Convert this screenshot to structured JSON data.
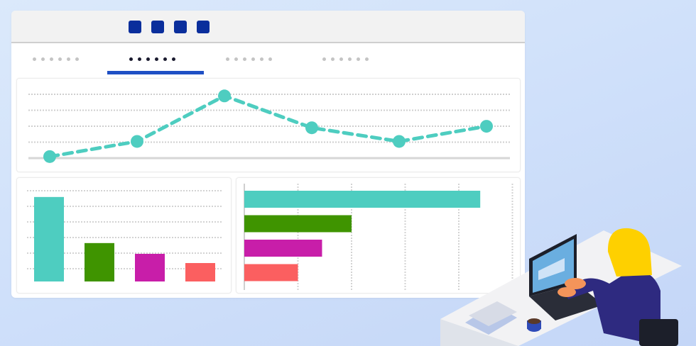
{
  "window": {
    "toolbar_squares": [
      "square-1",
      "square-2",
      "square-3",
      "square-4"
    ],
    "tabs": [
      {
        "active": false
      },
      {
        "active": true
      },
      {
        "active": false
      },
      {
        "active": false
      }
    ]
  },
  "colors": {
    "accent": "#1f4fc4",
    "toolbar_square": "#0a2e9c",
    "teal": "#4ecdc0",
    "green": "#3f9400",
    "magenta": "#c81ea9",
    "coral": "#fb5f60"
  },
  "chart_data": [
    {
      "type": "line",
      "style": "dashed",
      "x": [
        1,
        2,
        3,
        4,
        5,
        6
      ],
      "values": [
        0.1,
        1.1,
        4.1,
        2.0,
        1.1,
        2.1
      ],
      "ylim": [
        0,
        4.3
      ],
      "grid": true
    },
    {
      "type": "bar",
      "orientation": "vertical",
      "values": [
        5.5,
        2.5,
        1.8,
        1.2
      ],
      "colors": [
        "#4ecdc0",
        "#3f9400",
        "#c81ea9",
        "#fb5f60"
      ],
      "ylim": [
        0,
        6
      ],
      "grid": true
    },
    {
      "type": "bar",
      "orientation": "horizontal",
      "values": [
        4.4,
        2.0,
        1.45,
        1.0
      ],
      "colors": [
        "#4ecdc0",
        "#3f9400",
        "#c81ea9",
        "#fb5f60"
      ],
      "xlim": [
        0,
        5
      ],
      "grid": true
    }
  ]
}
